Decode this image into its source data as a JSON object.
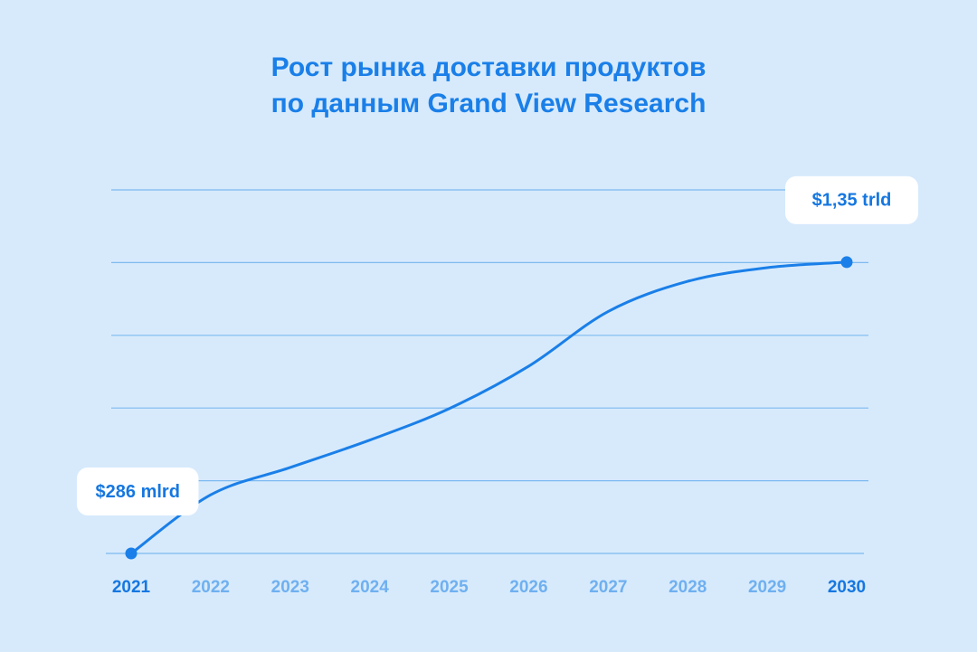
{
  "chart_data": {
    "type": "line",
    "title": [
      "Рост рынка доставки продуктов",
      "по данным Grand View Research"
    ],
    "categories": [
      "2021",
      "2022",
      "2023",
      "2024",
      "2025",
      "2026",
      "2027",
      "2028",
      "2029",
      "2030"
    ],
    "values": [
      286,
      500,
      600,
      700,
      815,
      970,
      1170,
      1280,
      1330,
      1350
    ],
    "value_labels": [
      "$286 mlrd",
      null,
      null,
      null,
      null,
      null,
      null,
      null,
      null,
      "$1,35 trld"
    ],
    "color": "#1a7fe8",
    "ylim": [
      286,
      1614
    ],
    "grid": true
  }
}
